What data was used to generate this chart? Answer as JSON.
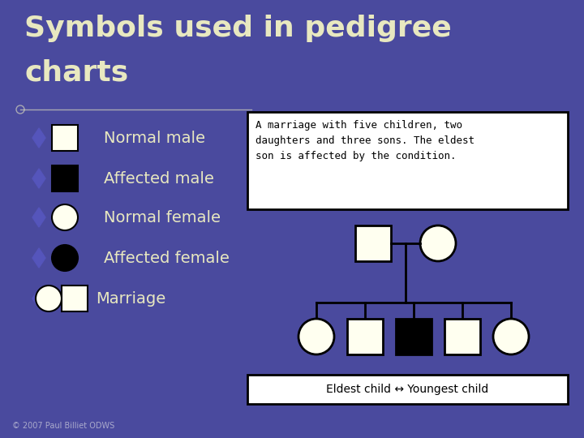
{
  "bg_color": "#4a4a9e",
  "title_line1": "Symbols used in pedigree",
  "title_line2": "charts",
  "title_color": "#e8e8c0",
  "title_fontsize": 26,
  "legend_items": [
    {
      "label": "Normal male",
      "shape": "square",
      "filled": false
    },
    {
      "label": "Affected male",
      "shape": "square",
      "filled": true
    },
    {
      "label": "Normal female",
      "shape": "circle",
      "filled": false
    },
    {
      "label": "Affected female",
      "shape": "circle",
      "filled": true
    },
    {
      "label": "Marriage",
      "shape": "marriage",
      "filled": false
    }
  ],
  "symbol_color_filled": "#000000",
  "symbol_color_empty": "#fffff0",
  "symbol_edge_color": "#000000",
  "text_color": "#e8e8c0",
  "label_fontsize": 14,
  "diamond_color": "#5555bb",
  "text_box_text": "A marriage with five children, two\ndaughters and three sons. The eldest\nson is affected by the condition.",
  "eldest_box_text": "Eldest child ↔ Youngest child",
  "footnote": "© 2007 Paul Billiet ODWS",
  "footnote_color": "#aaaacc",
  "footnote_fontsize": 7
}
